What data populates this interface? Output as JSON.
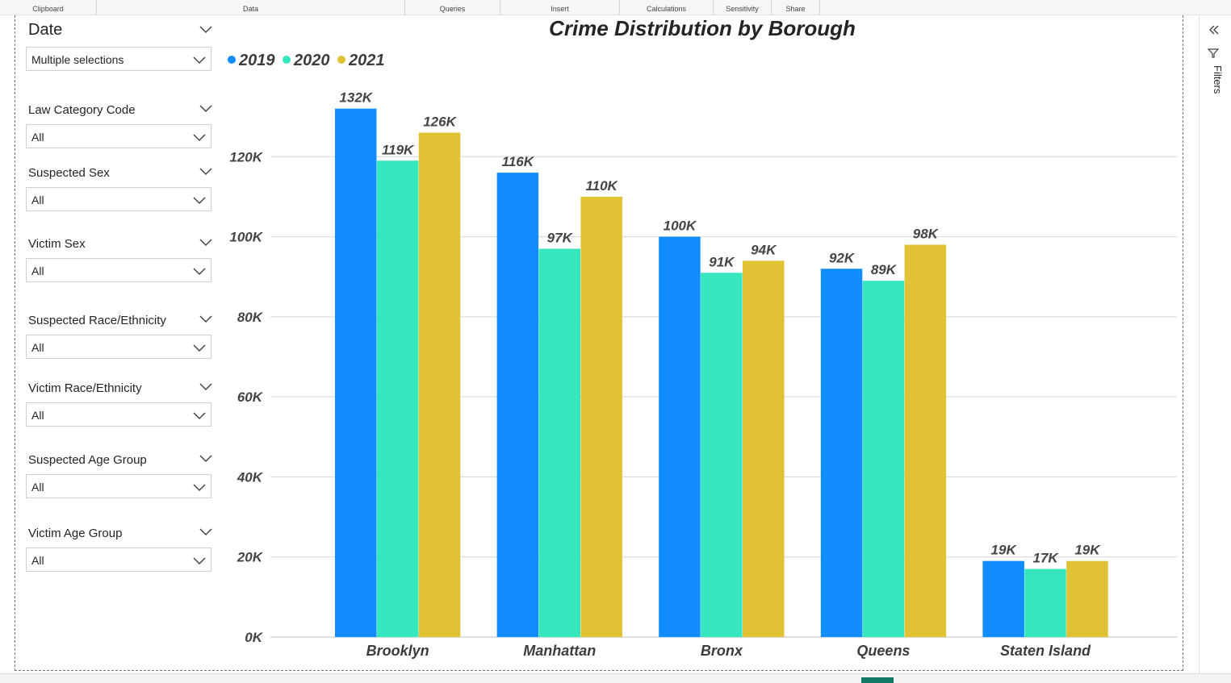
{
  "ribbon": {
    "groups": [
      "Clipboard",
      "Data",
      "Queries",
      "Insert",
      "Calculations",
      "Sensitivity",
      "Share"
    ]
  },
  "slicers": {
    "date": {
      "title": "Date",
      "value": "Multiple selections"
    },
    "law_category_code": {
      "title": "Law Category Code",
      "value": "All"
    },
    "suspected_sex": {
      "title": "Suspected Sex",
      "value": "All"
    },
    "victim_sex": {
      "title": "Victim Sex",
      "value": "All"
    },
    "suspected_race": {
      "title": "Suspected Race/Ethnicity",
      "value": "All"
    },
    "victim_race": {
      "title": "Victim Race/Ethnicity",
      "value": "All"
    },
    "suspected_age": {
      "title": "Suspected Age Group",
      "value": "All"
    },
    "victim_age": {
      "title": "Victim Age Group",
      "value": "All"
    }
  },
  "filters_pane": {
    "label": "Filters"
  },
  "colors": {
    "series_2019": "#118dff",
    "series_2020": "#36e6bc",
    "series_2021": "#e0c233",
    "active_page_tab": "#117865"
  },
  "chart_data": {
    "type": "bar",
    "title": "Crime Distribution by Borough",
    "xlabel": "",
    "ylabel": "",
    "categories": [
      "Brooklyn",
      "Manhattan",
      "Bronx",
      "Queens",
      "Staten Island"
    ],
    "series": [
      {
        "name": "2019",
        "values": [
          132000,
          116000,
          100000,
          92000,
          19000
        ],
        "labels": [
          "132K",
          "116K",
          "100K",
          "92K",
          "19K"
        ]
      },
      {
        "name": "2020",
        "values": [
          119000,
          97000,
          91000,
          89000,
          17000
        ],
        "labels": [
          "119K",
          "97K",
          "91K",
          "89K",
          "17K"
        ]
      },
      {
        "name": "2021",
        "values": [
          126000,
          110000,
          94000,
          98000,
          19000
        ],
        "labels": [
          "126K",
          "110K",
          "94K",
          "98K",
          "19K"
        ]
      }
    ],
    "ylim": [
      0,
      140000
    ],
    "yticks": [
      0,
      20000,
      40000,
      60000,
      80000,
      100000,
      120000
    ],
    "ytick_labels": [
      "0K",
      "20K",
      "40K",
      "60K",
      "80K",
      "100K",
      "120K"
    ],
    "grid": true,
    "legend": "top-left"
  }
}
